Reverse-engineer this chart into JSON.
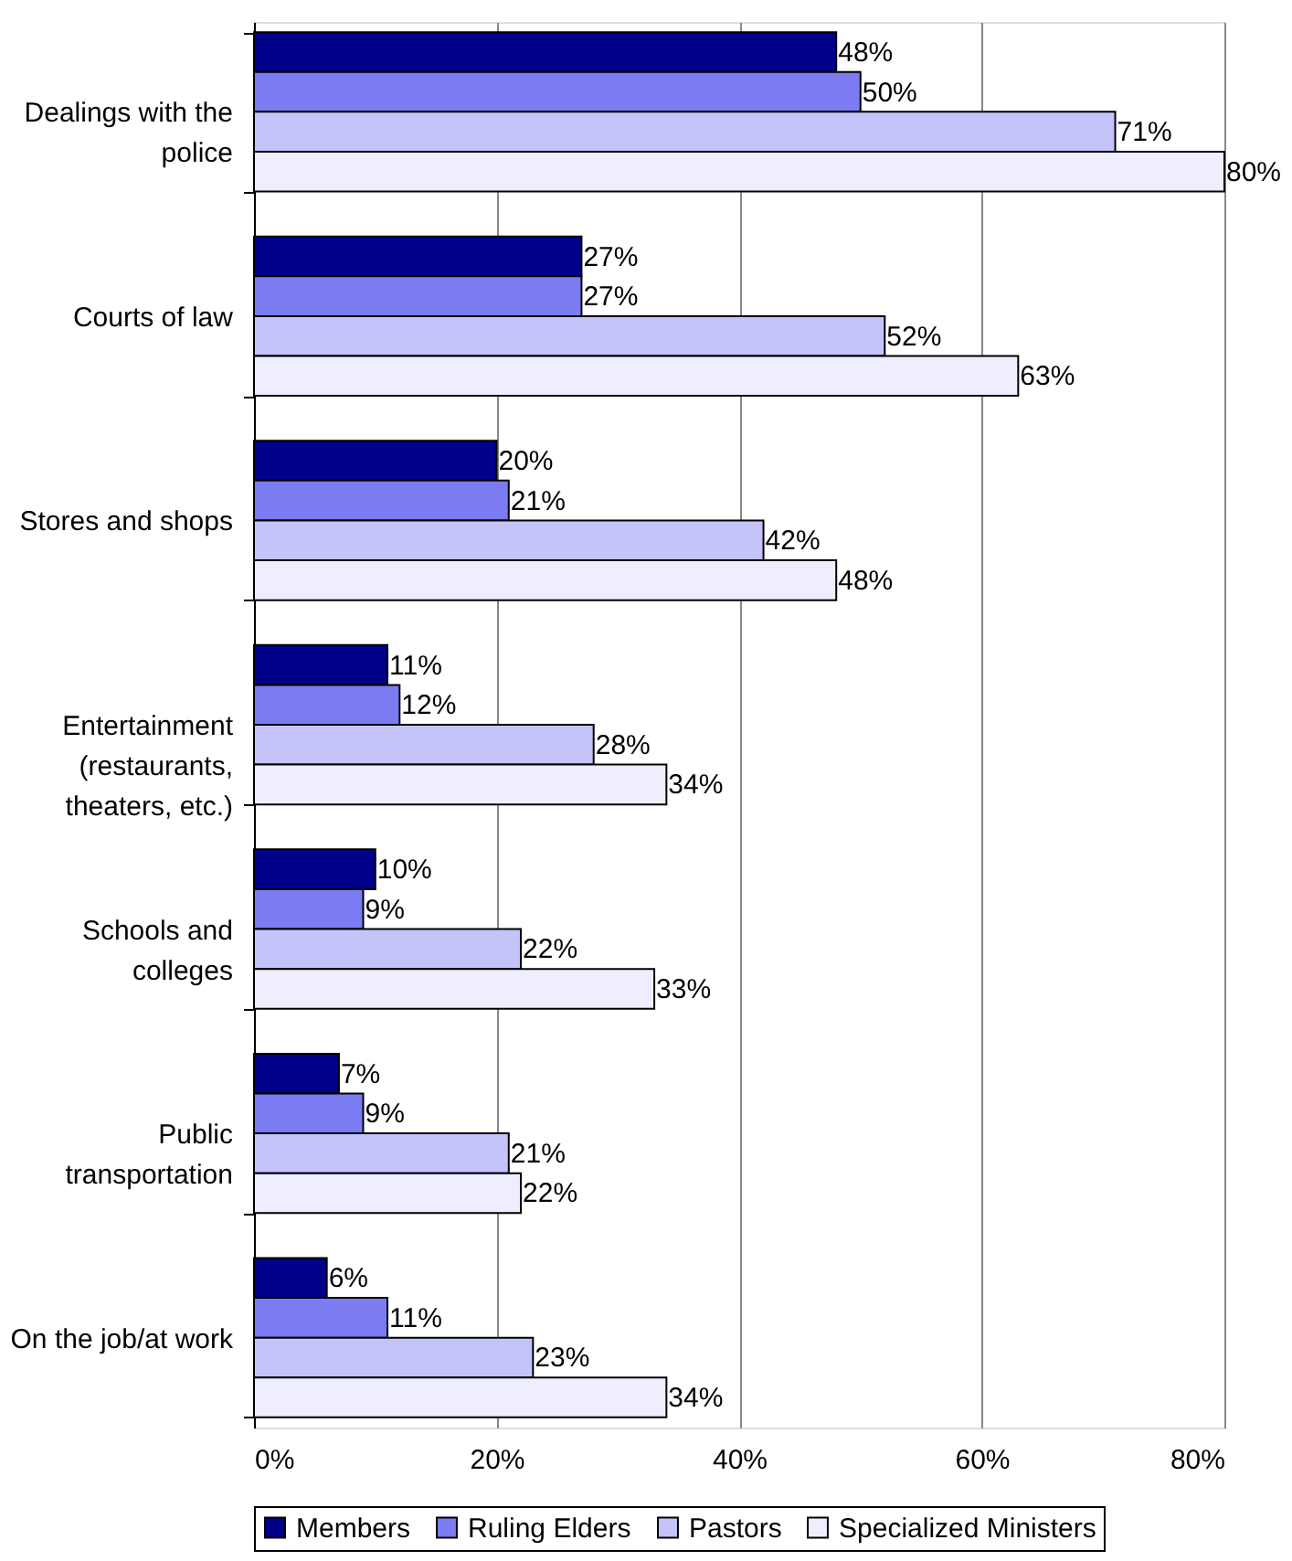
{
  "chart_data": {
    "type": "bar",
    "orientation": "horizontal",
    "categories": [
      "Dealings with the police",
      "Courts of law",
      "Stores and shops",
      "Entertainment (restaurants, theaters, etc.)",
      "Schools and colleges",
      "Public transportation",
      "On the job/at work"
    ],
    "series": [
      {
        "name": "Members",
        "color": "#00008b",
        "values": [
          48,
          27,
          20,
          11,
          10,
          7,
          6
        ],
        "value_labels": [
          "48%",
          "27%",
          "20%",
          "11%",
          "10%",
          "7%",
          "6%"
        ]
      },
      {
        "name": "Ruling Elders",
        "color": "#7b7bf2",
        "values": [
          50,
          27,
          21,
          12,
          9,
          9,
          11
        ],
        "value_labels": [
          "50%",
          "27%",
          "21%",
          "12%",
          "9%",
          "9%",
          "11%"
        ]
      },
      {
        "name": "Pastors",
        "color": "#c4c4fa",
        "values": [
          71,
          52,
          42,
          28,
          22,
          21,
          23
        ],
        "value_labels": [
          "71%",
          "52%",
          "42%",
          "28%",
          "22%",
          "21%",
          "23%"
        ]
      },
      {
        "name": "Specialized Ministers",
        "color": "#eeeeff",
        "values": [
          80,
          63,
          48,
          34,
          33,
          22,
          34
        ],
        "value_labels": [
          "80%",
          "63%",
          "48%",
          "34%",
          "33%",
          "22%",
          "34%"
        ]
      }
    ],
    "xlim": [
      0,
      80
    ],
    "xticks": [
      {
        "value": 0,
        "label": "0%"
      },
      {
        "value": 20,
        "label": "20%"
      },
      {
        "value": 40,
        "label": "40%"
      },
      {
        "value": 60,
        "label": "60%"
      },
      {
        "value": 80,
        "label": "80%"
      }
    ],
    "grid": "x",
    "legend": "bottom"
  }
}
